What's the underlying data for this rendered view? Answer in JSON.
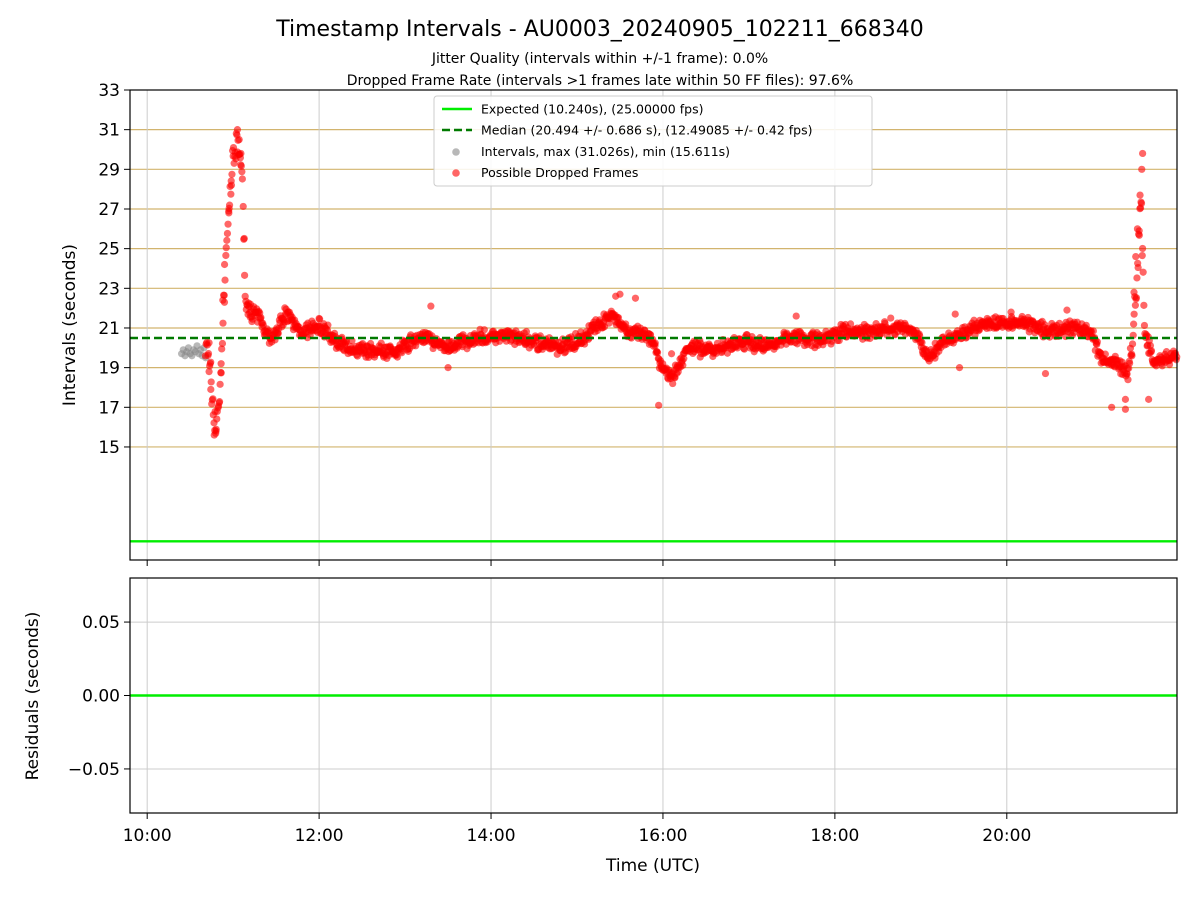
{
  "title": "Timestamp Intervals - AU0003_20240905_102211_668340",
  "subtitle_1": "Jitter Quality (intervals within +/-1 frame): 0.0%",
  "subtitle_2": "Dropped Frame Rate (intervals >1 frames late within 50 FF files): 97.6%",
  "colors": {
    "expected": "#00ee00",
    "median": "#007a00",
    "intervals": "#888888",
    "dropped": "#ff0000",
    "frame_gridlines": "#d2b46e",
    "grid": "#cccccc"
  },
  "chart_data": [
    {
      "type": "scatter",
      "panel": "intervals",
      "ylabel": "Intervals (seconds)",
      "xlabel": "",
      "ylim": [
        9.3,
        33
      ],
      "yticks": [
        15,
        17,
        19,
        21,
        23,
        25,
        27,
        29,
        31,
        33
      ],
      "ytick_labels": [
        "15",
        "17",
        "19",
        "21",
        "23",
        "25",
        "27",
        "29",
        "31",
        "33"
      ],
      "x_unit": "hours UTC",
      "xlim": [
        9.8,
        21.98
      ],
      "xticks": [
        10,
        12,
        14,
        16,
        18,
        20
      ],
      "xtick_labels": [
        "",
        "",
        "",
        "",
        "",
        ""
      ],
      "grid": true,
      "legend_placement": "top-center",
      "frame_gridlines": [
        15,
        17,
        19,
        21,
        23,
        25,
        27,
        29,
        31
      ],
      "expected": {
        "name": "Expected (10.240s), (25.00000 fps)",
        "value": 10.24
      },
      "median": {
        "name": "Median (20.494 +/- 0.686 s), (12.49085 +/- 0.42 fps)",
        "value": 20.494
      },
      "intervals_series": {
        "name": "Intervals, max (31.026s), min (15.611s)"
      },
      "dropped_series": {
        "name": "Possible Dropped Frames"
      },
      "intervals_points": [
        [
          10.4,
          19.7
        ],
        [
          10.42,
          19.9
        ],
        [
          10.44,
          19.6
        ],
        [
          10.46,
          19.8
        ],
        [
          10.48,
          20.0
        ],
        [
          10.5,
          19.7
        ],
        [
          10.52,
          19.6
        ],
        [
          10.54,
          19.9
        ],
        [
          10.56,
          19.8
        ],
        [
          10.58,
          20.1
        ],
        [
          10.6,
          19.7
        ],
        [
          10.62,
          19.9
        ],
        [
          10.64,
          19.6
        ],
        [
          10.66,
          20.0
        ],
        [
          10.68,
          19.5
        ]
      ],
      "dropped_anchors": [
        [
          10.68,
          20.1
        ],
        [
          10.72,
          19.9
        ],
        [
          10.76,
          17.0
        ],
        [
          10.8,
          16.0
        ],
        [
          10.84,
          17.2
        ],
        [
          10.88,
          21.0
        ],
        [
          10.92,
          25.0
        ],
        [
          10.96,
          27.5
        ],
        [
          11.0,
          29.5
        ],
        [
          11.06,
          30.2
        ],
        [
          11.1,
          29.0
        ],
        [
          11.15,
          22.0
        ],
        [
          11.3,
          21.5
        ],
        [
          11.45,
          20.4
        ],
        [
          11.6,
          21.7
        ],
        [
          11.8,
          20.8
        ],
        [
          12.0,
          21.1
        ],
        [
          12.3,
          20.0
        ],
        [
          12.6,
          19.9
        ],
        [
          12.9,
          19.8
        ],
        [
          13.2,
          20.6
        ],
        [
          13.5,
          20.0
        ],
        [
          13.8,
          20.5
        ],
        [
          14.2,
          20.6
        ],
        [
          14.5,
          20.3
        ],
        [
          14.8,
          20.0
        ],
        [
          15.1,
          20.6
        ],
        [
          15.4,
          21.7
        ],
        [
          15.6,
          20.8
        ],
        [
          15.85,
          20.5
        ],
        [
          16.0,
          19.0
        ],
        [
          16.1,
          18.5
        ],
        [
          16.3,
          20.0
        ],
        [
          16.6,
          19.9
        ],
        [
          16.9,
          20.3
        ],
        [
          17.2,
          20.1
        ],
        [
          17.5,
          20.6
        ],
        [
          17.8,
          20.4
        ],
        [
          18.1,
          20.8
        ],
        [
          18.4,
          20.8
        ],
        [
          18.7,
          21.0
        ],
        [
          18.9,
          20.9
        ],
        [
          19.1,
          19.5
        ],
        [
          19.3,
          20.4
        ],
        [
          19.6,
          21.0
        ],
        [
          19.9,
          21.2
        ],
        [
          20.2,
          21.3
        ],
        [
          20.5,
          20.8
        ],
        [
          20.8,
          21.1
        ],
        [
          21.0,
          20.6
        ],
        [
          21.1,
          19.5
        ],
        [
          21.25,
          19.2
        ],
        [
          21.35,
          19.0
        ],
        [
          21.4,
          18.5
        ],
        [
          21.45,
          20.0
        ],
        [
          21.52,
          23.5
        ],
        [
          21.56,
          28.0
        ],
        [
          21.6,
          21.0
        ],
        [
          21.7,
          19.3
        ],
        [
          21.85,
          19.4
        ],
        [
          21.98,
          19.5
        ]
      ],
      "dropped_outliers": [
        [
          11.05,
          31.0
        ],
        [
          11.07,
          30.5
        ],
        [
          11.09,
          29.8
        ],
        [
          10.98,
          28.2
        ],
        [
          10.95,
          26.8
        ],
        [
          10.9,
          24.2
        ],
        [
          10.88,
          22.4
        ],
        [
          10.86,
          19.2
        ],
        [
          10.78,
          15.6
        ],
        [
          10.8,
          15.8
        ],
        [
          10.74,
          17.9
        ],
        [
          10.72,
          18.8
        ],
        [
          11.2,
          22.2
        ],
        [
          13.3,
          22.1
        ],
        [
          13.5,
          19.0
        ],
        [
          15.45,
          22.6
        ],
        [
          15.5,
          22.7
        ],
        [
          15.68,
          22.5
        ],
        [
          15.95,
          17.1
        ],
        [
          16.1,
          19.7
        ],
        [
          17.55,
          21.6
        ],
        [
          18.35,
          21.0
        ],
        [
          18.65,
          21.5
        ],
        [
          19.45,
          19.0
        ],
        [
          19.4,
          21.7
        ],
        [
          20.05,
          21.8
        ],
        [
          20.45,
          18.7
        ],
        [
          20.7,
          21.9
        ],
        [
          21.22,
          17.0
        ],
        [
          21.38,
          16.9
        ],
        [
          21.38,
          17.4
        ],
        [
          21.48,
          22.8
        ],
        [
          21.5,
          24.6
        ],
        [
          21.54,
          25.9
        ],
        [
          21.55,
          27.7
        ],
        [
          21.57,
          29.0
        ],
        [
          21.58,
          29.8
        ],
        [
          21.65,
          17.4
        ],
        [
          21.52,
          26.0
        ]
      ]
    },
    {
      "type": "line",
      "panel": "residuals",
      "ylabel": "Residuals (seconds)",
      "xlabel": "Time (UTC)",
      "ylim": [
        -0.08,
        0.08
      ],
      "yticks": [
        0.05,
        0.0,
        -0.05
      ],
      "ytick_labels": [
        "0.05",
        "0.00",
        "−0.05"
      ],
      "x_unit": "hours UTC",
      "xlim": [
        9.8,
        21.98
      ],
      "xticks": [
        10,
        12,
        14,
        16,
        18,
        20
      ],
      "xtick_labels": [
        "10:00",
        "12:00",
        "14:00",
        "16:00",
        "18:00",
        "20:00"
      ],
      "grid": true,
      "series": [
        {
          "values": [
            0.0,
            0.0
          ]
        }
      ]
    }
  ]
}
